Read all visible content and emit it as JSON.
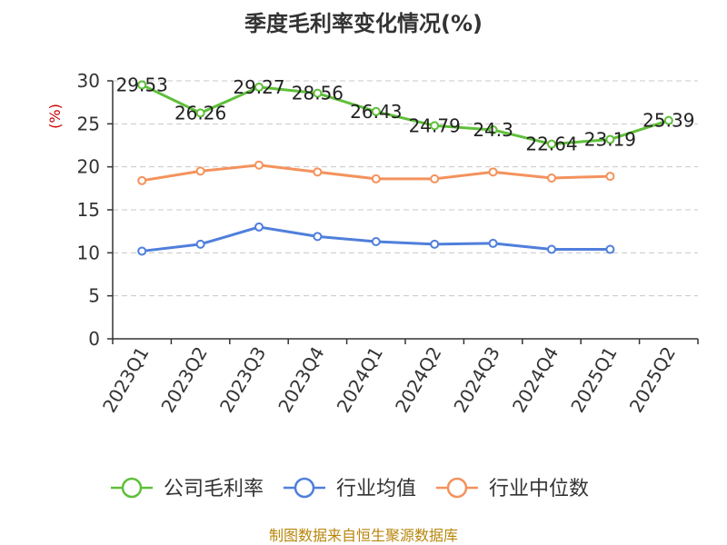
{
  "chart_data": {
    "type": "line",
    "title": "季度毛利率变化情况(%)",
    "ylabel": "(%)",
    "xlabel": "",
    "ylim": [
      0,
      30
    ],
    "yticks": [
      0,
      5,
      10,
      15,
      20,
      25,
      30
    ],
    "grid": true,
    "legend_position": "bottom",
    "categories": [
      "2023Q1",
      "2023Q2",
      "2023Q3",
      "2023Q4",
      "2024Q1",
      "2024Q2",
      "2024Q3",
      "2024Q4",
      "2025Q1",
      "2025Q2"
    ],
    "series": [
      {
        "name": "公司毛利率",
        "color": "#5fbf3a",
        "values": [
          29.53,
          26.26,
          29.27,
          28.56,
          26.43,
          24.79,
          24.3,
          22.64,
          23.19,
          25.39
        ],
        "labels": [
          "29.53",
          "26.26",
          "29.27",
          "28.56",
          "26.43",
          "24.79",
          "24.3",
          "22.64",
          "23.19",
          "25.39"
        ]
      },
      {
        "name": "行业均值",
        "color": "#4f7fdc",
        "values": [
          10.2,
          11.0,
          13.0,
          11.9,
          11.3,
          11.0,
          11.1,
          10.4,
          10.4,
          null
        ]
      },
      {
        "name": "行业中位数",
        "color": "#f4925c",
        "values": [
          18.4,
          19.5,
          20.2,
          19.4,
          18.6,
          18.6,
          19.4,
          18.7,
          18.9,
          null
        ]
      }
    ]
  },
  "source": "制图数据来自恒生聚源数据库"
}
